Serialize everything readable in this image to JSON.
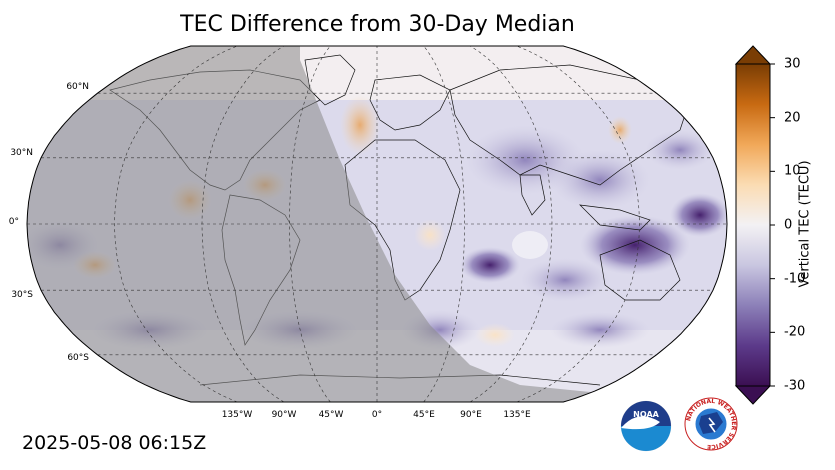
{
  "title": "TEC Difference from 30-Day Median",
  "timestamp": "2025-05-08 06:15Z",
  "colorbar": {
    "label": "Vertical TEC (TECU)",
    "ticks": [
      "30",
      "20",
      "10",
      "0",
      "-10",
      "-20",
      "-30"
    ],
    "min": -30,
    "max": 30,
    "colors": [
      "#3b0f52",
      "#5c3a8a",
      "#8c80b8",
      "#c9c6e0",
      "#f3f1f4",
      "#fbdcb3",
      "#f1a859",
      "#c86a12",
      "#7a3d04"
    ]
  },
  "map": {
    "projection": "Robinson",
    "night_shading": true,
    "lat_labels": [
      "60°N",
      "30°N",
      "0°",
      "30°S",
      "60°S"
    ],
    "lon_labels": [
      "135°W",
      "90°W",
      "45°W",
      "0°",
      "45°E",
      "90°E",
      "135°E"
    ]
  },
  "logos": {
    "noaa": "NOAA",
    "nws": "NATIONAL WEATHER SERVICE"
  }
}
